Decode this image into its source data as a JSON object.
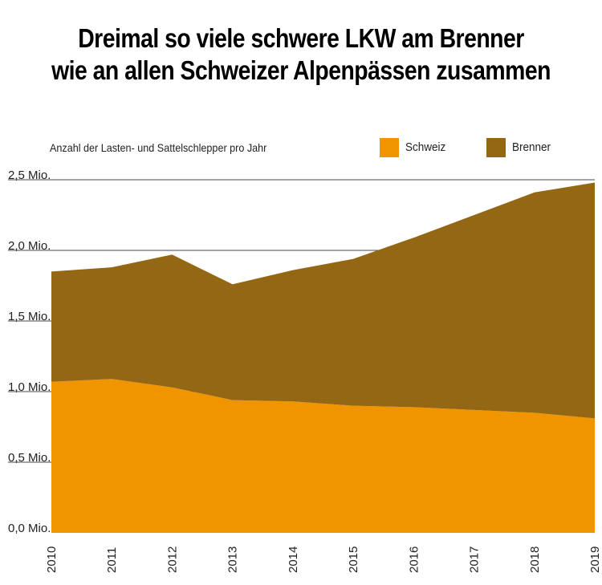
{
  "chart_data": {
    "type": "area",
    "stacked": true,
    "title": [
      "Dreimal so viele schwere LKW am Brenner",
      "wie an allen Schweizer Alpenpässen zusammen"
    ],
    "subtitle": "Anzahl der Lasten- und Sattelschlepper pro Jahr",
    "categories": [
      "2010",
      "2011",
      "2012",
      "2013",
      "2014",
      "2015",
      "2016",
      "2017",
      "2018",
      "2019"
    ],
    "series": [
      {
        "name": "Schweiz",
        "color": "#f09500",
        "values": [
          1.07,
          1.09,
          1.03,
          0.94,
          0.93,
          0.9,
          0.89,
          0.87,
          0.85,
          0.81
        ]
      },
      {
        "name": "Brenner",
        "color": "#946714",
        "values": [
          0.78,
          0.79,
          0.94,
          0.82,
          0.93,
          1.04,
          1.2,
          1.38,
          1.56,
          1.67
        ]
      }
    ],
    "y_ticks": [
      0,
      0.5,
      1.0,
      1.5,
      2.0,
      2.5
    ],
    "y_tick_labels": [
      "0,0 Mio.",
      "0,5 Mio.",
      "1,0 Mio.",
      "1,5 Mio.",
      "2,0 Mio.",
      "2,5 Mio."
    ],
    "ylim": [
      0,
      2.5
    ],
    "gridlines": true,
    "legend_position": "top-right",
    "xlabel": "",
    "ylabel": ""
  }
}
